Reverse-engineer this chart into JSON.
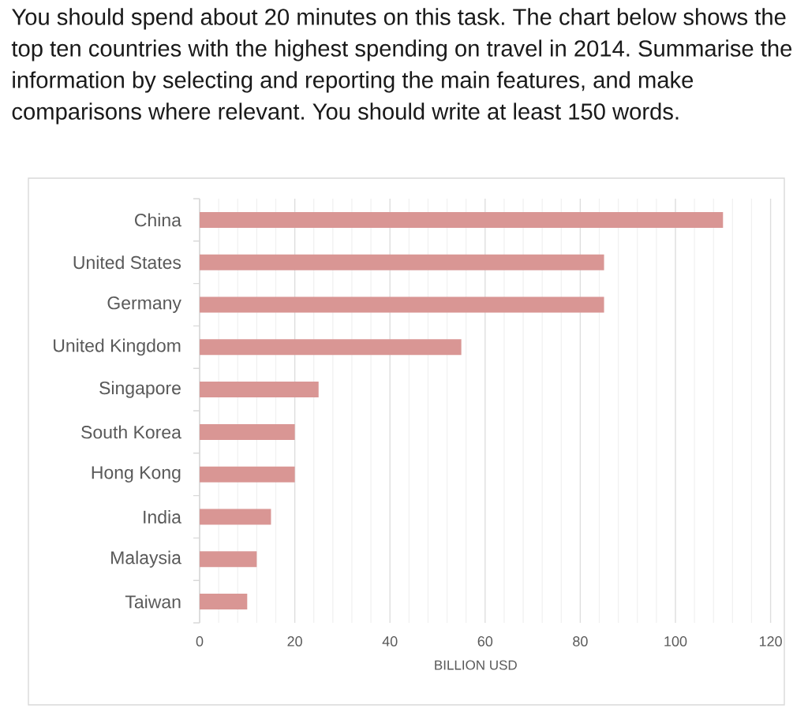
{
  "chart_data": {
    "type": "bar",
    "orientation": "horizontal",
    "title": "You should spend about 20 minutes on this task. The chart below shows the top ten countries with the highest spending on travel in 2014. Summarise the information by selecting and reporting the main features, and make comparisons where relevant. You should write at least 150 words.",
    "xlabel": "BILLION USD",
    "categories": [
      "China",
      "United States",
      "Germany",
      "United Kingdom",
      "Singapore",
      "South Korea",
      "Hong Kong",
      "India",
      "Malaysia",
      "Taiwan"
    ],
    "values": [
      110,
      85,
      85,
      55,
      25,
      20,
      20,
      15,
      12,
      10
    ],
    "color": "#d99694",
    "xlim": [
      0,
      120
    ],
    "xticks": [
      0,
      20,
      40,
      60,
      80,
      100,
      120
    ],
    "grid": "x"
  }
}
